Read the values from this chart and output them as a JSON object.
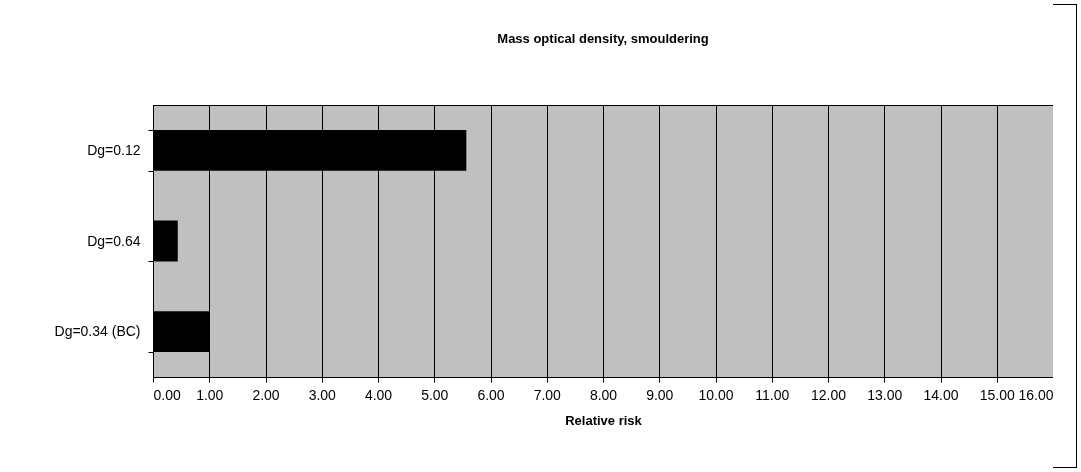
{
  "chart_data": {
    "type": "bar",
    "orientation": "horizontal",
    "title": "Mass optical density, smouldering",
    "xlabel": "Relative risk",
    "categories": [
      "Dg=0.12",
      "Dg=0.64",
      "Dg=0.34 (BC)"
    ],
    "values": [
      5.57,
      0.44,
      1.0
    ],
    "color": "#000000",
    "xlim": [
      0,
      16
    ],
    "xticks": [
      {
        "value": 0,
        "label": "0.00"
      },
      {
        "value": 1,
        "label": "1.00"
      },
      {
        "value": 2,
        "label": "2.00"
      },
      {
        "value": 3,
        "label": "3.00"
      },
      {
        "value": 4,
        "label": "4.00"
      },
      {
        "value": 5,
        "label": "5.00"
      },
      {
        "value": 6,
        "label": "6.00"
      },
      {
        "value": 7,
        "label": "7.00"
      },
      {
        "value": 8,
        "label": "8.00"
      },
      {
        "value": 9,
        "label": "9.00"
      },
      {
        "value": 10,
        "label": "10.00"
      },
      {
        "value": 11,
        "label": "11.00"
      },
      {
        "value": 12,
        "label": "12.00"
      },
      {
        "value": 13,
        "label": "13.00"
      },
      {
        "value": 14,
        "label": "14.00"
      },
      {
        "value": 15,
        "label": "15.00"
      },
      {
        "value": 16,
        "label": "16.00"
      }
    ],
    "grid": "x"
  }
}
